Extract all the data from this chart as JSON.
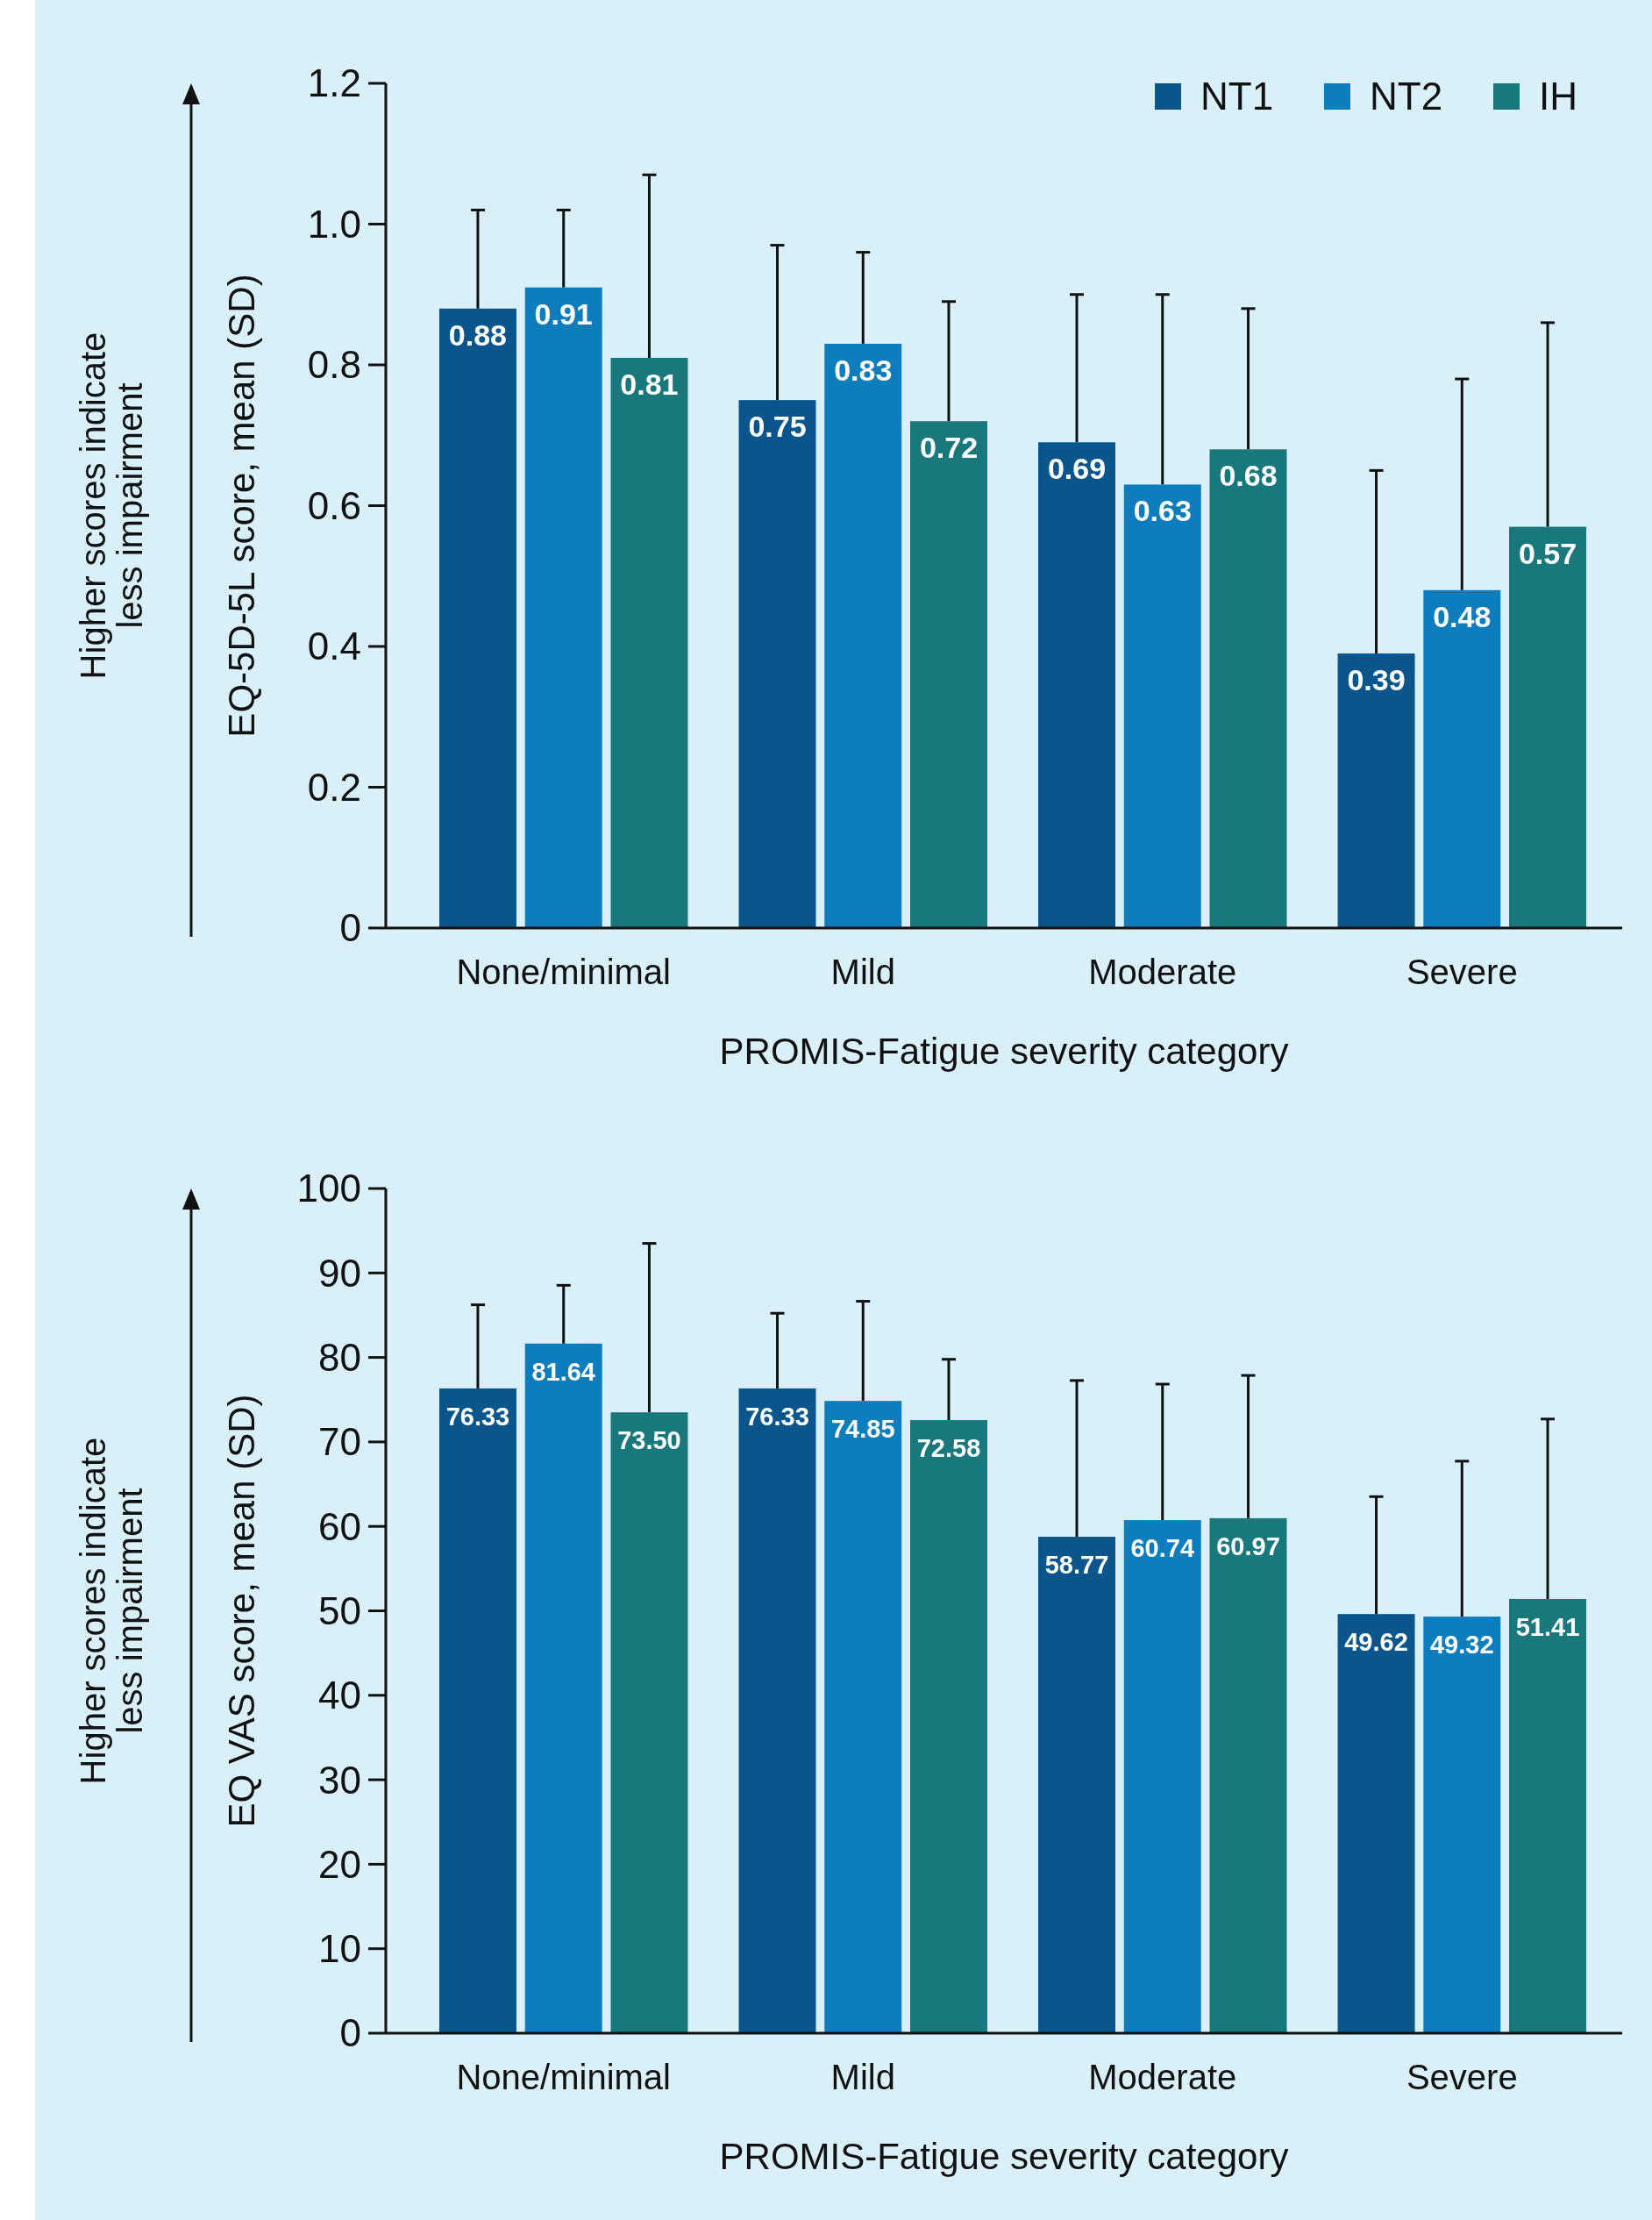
{
  "chart_data": [
    {
      "type": "bar",
      "ylabel": "EQ-5D-5L score, mean (SD)",
      "xlabel": "PROMIS-Fatigue severity category",
      "annotations": [
        "Higher scores indicate\nless impairment"
      ],
      "categories": [
        "None/minimal",
        "Mild",
        "Moderate",
        "Severe"
      ],
      "series": [
        {
          "name": "NT1",
          "color": "#0a568c",
          "values": [
            0.88,
            0.75,
            0.69,
            0.39
          ],
          "errors": [
            0.14,
            0.22,
            0.21,
            0.26
          ]
        },
        {
          "name": "NT2",
          "color": "#0e7dbd",
          "values": [
            0.91,
            0.83,
            0.63,
            0.48
          ],
          "errors": [
            0.11,
            0.13,
            0.27,
            0.3
          ]
        },
        {
          "name": "IH",
          "color": "#18787c",
          "values": [
            0.81,
            0.72,
            0.68,
            0.57
          ],
          "errors": [
            0.26,
            0.17,
            0.2,
            0.29
          ]
        }
      ],
      "ylim": [
        0,
        1.2
      ],
      "yticks": [
        {
          "value": 0,
          "label": "0"
        },
        0.2,
        0.4,
        0.6,
        0.8,
        {
          "value": 1,
          "label": "1.0"
        },
        1.2
      ],
      "data_labels": true,
      "legend": "top right",
      "grid": false
    },
    {
      "type": "bar",
      "ylabel": "EQ VAS score, mean (SD)",
      "xlabel": "PROMIS-Fatigue severity category",
      "annotations": [
        "Higher scores indicate\nless impairment"
      ],
      "categories": [
        "None/minimal",
        "Mild",
        "Moderate",
        "Severe"
      ],
      "series": [
        {
          "color": "#0a568c",
          "values": [
            76.33,
            76.33,
            58.77,
            49.62
          ],
          "value_labels": [
            "76.33",
            "76.33",
            "58.77",
            "49.62"
          ],
          "errors": [
            9.9,
            8.9,
            18.5,
            13.9
          ]
        },
        {
          "color": "#0e7dbd",
          "values": [
            81.64,
            74.85,
            60.74,
            49.32
          ],
          "value_labels": [
            "81.64",
            "74.85",
            "60.74",
            "49.32"
          ],
          "errors": [
            6.9,
            11.8,
            16.1,
            18.4
          ]
        },
        {
          "color": "#18787c",
          "values": [
            73.5,
            72.58,
            60.97,
            51.41
          ],
          "value_labels": [
            "73.50",
            "72.58",
            "60.97",
            "51.41"
          ],
          "errors": [
            20.0,
            7.2,
            16.9,
            21.3
          ]
        }
      ],
      "ylim": [
        0,
        100
      ],
      "yticks": [
        0,
        10,
        20,
        30,
        40,
        50,
        60,
        70,
        80,
        90,
        100
      ],
      "legend": false,
      "grid": false
    }
  ]
}
